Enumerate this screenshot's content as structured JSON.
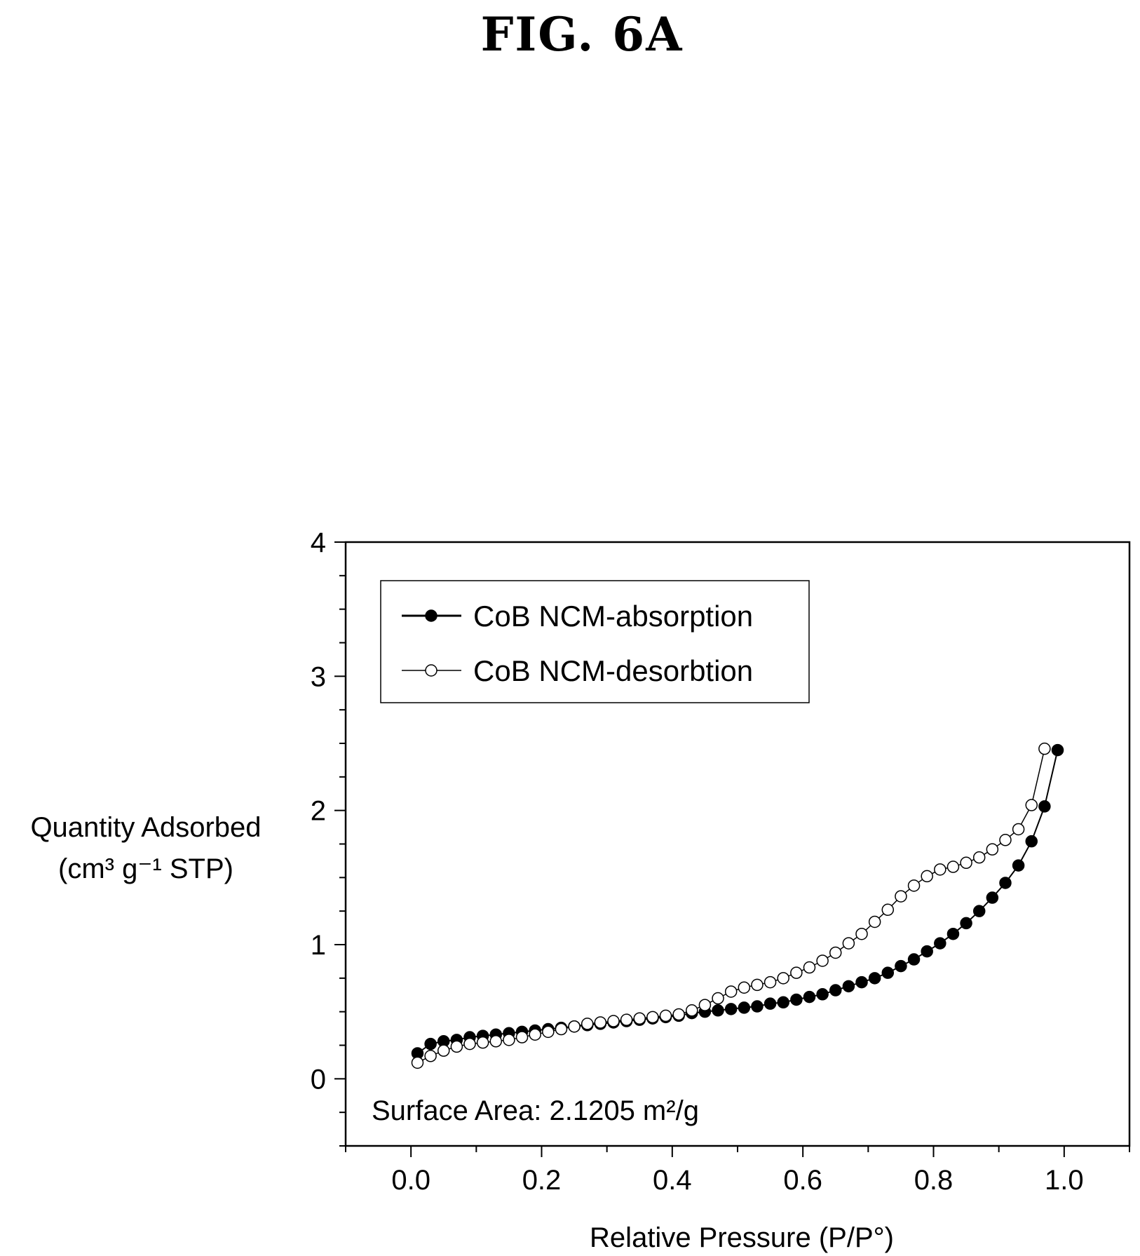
{
  "figure_title": "FIG. 6A",
  "chart_data": {
    "type": "scatter",
    "xlabel": "Relative Pressure (P/P°)",
    "ylabel_line1": "Quantity Adsorbed",
    "ylabel_line2": "(cm³ g⁻¹ STP)",
    "xlim": [
      -0.1,
      1.1
    ],
    "ylim": [
      -0.5,
      4
    ],
    "xticks": [
      0.0,
      0.2,
      0.4,
      0.6,
      0.8,
      1.0
    ],
    "xtick_labels": [
      "0.0",
      "0.2",
      "0.4",
      "0.6",
      "0.8",
      "1.0"
    ],
    "yticks": [
      0,
      1,
      2,
      3,
      4
    ],
    "ytick_labels": [
      "0",
      "1",
      "2",
      "3",
      "4"
    ],
    "grid": false,
    "legend_position": "top-left",
    "annotation": "Surface Area: 2.1205 m²/g",
    "series": [
      {
        "name": "CoB NCM-absorption",
        "marker": "filled-circle",
        "x": [
          0.01,
          0.03,
          0.05,
          0.07,
          0.09,
          0.11,
          0.13,
          0.15,
          0.17,
          0.19,
          0.21,
          0.23,
          0.25,
          0.27,
          0.29,
          0.31,
          0.33,
          0.35,
          0.37,
          0.39,
          0.41,
          0.43,
          0.45,
          0.47,
          0.49,
          0.51,
          0.53,
          0.55,
          0.57,
          0.59,
          0.61,
          0.63,
          0.65,
          0.67,
          0.69,
          0.71,
          0.73,
          0.75,
          0.77,
          0.79,
          0.81,
          0.83,
          0.85,
          0.87,
          0.89,
          0.91,
          0.93,
          0.95,
          0.97,
          0.99
        ],
        "y": [
          0.19,
          0.26,
          0.28,
          0.29,
          0.31,
          0.32,
          0.33,
          0.34,
          0.35,
          0.36,
          0.37,
          0.38,
          0.39,
          0.4,
          0.41,
          0.42,
          0.43,
          0.44,
          0.45,
          0.46,
          0.47,
          0.49,
          0.5,
          0.51,
          0.52,
          0.53,
          0.54,
          0.56,
          0.57,
          0.59,
          0.61,
          0.63,
          0.66,
          0.69,
          0.72,
          0.75,
          0.79,
          0.84,
          0.89,
          0.95,
          1.01,
          1.08,
          1.16,
          1.25,
          1.35,
          1.46,
          1.59,
          1.77,
          2.03,
          2.45
        ]
      },
      {
        "name": "CoB NCM-desorbtion",
        "marker": "open-circle",
        "x": [
          0.01,
          0.03,
          0.05,
          0.07,
          0.09,
          0.11,
          0.13,
          0.15,
          0.17,
          0.19,
          0.21,
          0.23,
          0.25,
          0.27,
          0.29,
          0.31,
          0.33,
          0.35,
          0.37,
          0.39,
          0.41,
          0.43,
          0.45,
          0.47,
          0.49,
          0.51,
          0.53,
          0.55,
          0.57,
          0.59,
          0.61,
          0.63,
          0.65,
          0.67,
          0.69,
          0.71,
          0.73,
          0.75,
          0.77,
          0.79,
          0.81,
          0.83,
          0.85,
          0.87,
          0.89,
          0.91,
          0.93,
          0.95,
          0.97
        ],
        "y": [
          0.12,
          0.17,
          0.21,
          0.24,
          0.26,
          0.27,
          0.28,
          0.29,
          0.31,
          0.33,
          0.35,
          0.37,
          0.39,
          0.41,
          0.42,
          0.43,
          0.44,
          0.45,
          0.46,
          0.47,
          0.48,
          0.51,
          0.55,
          0.6,
          0.65,
          0.68,
          0.7,
          0.72,
          0.75,
          0.79,
          0.83,
          0.88,
          0.94,
          1.01,
          1.08,
          1.17,
          1.26,
          1.36,
          1.44,
          1.51,
          1.56,
          1.58,
          1.61,
          1.65,
          1.71,
          1.78,
          1.86,
          2.04,
          2.46
        ]
      }
    ]
  }
}
